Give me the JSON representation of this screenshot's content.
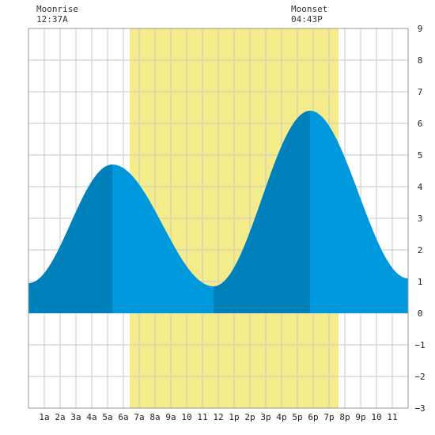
{
  "moon": {
    "moonrise_label": "Moonrise",
    "moonrise_time": "12:37A",
    "moonset_label": "Moonset",
    "moonset_time": "04:43P"
  },
  "chart_data": {
    "type": "area",
    "title": "",
    "xlabel": "",
    "ylabel": "",
    "xlim": [
      0,
      24
    ],
    "ylim": [
      -3,
      9
    ],
    "grid": true,
    "x_ticks": [
      {
        "x": 1,
        "label": "1a"
      },
      {
        "x": 2,
        "label": "2a"
      },
      {
        "x": 3,
        "label": "3a"
      },
      {
        "x": 4,
        "label": "4a"
      },
      {
        "x": 5,
        "label": "5a"
      },
      {
        "x": 6,
        "label": "6a"
      },
      {
        "x": 7,
        "label": "7a"
      },
      {
        "x": 8,
        "label": "8a"
      },
      {
        "x": 9,
        "label": "9a"
      },
      {
        "x": 10,
        "label": "10"
      },
      {
        "x": 11,
        "label": "11"
      },
      {
        "x": 12,
        "label": "12"
      },
      {
        "x": 13,
        "label": "1p"
      },
      {
        "x": 14,
        "label": "2p"
      },
      {
        "x": 15,
        "label": "3p"
      },
      {
        "x": 16,
        "label": "4p"
      },
      {
        "x": 17,
        "label": "5p"
      },
      {
        "x": 18,
        "label": "6p"
      },
      {
        "x": 19,
        "label": "7p"
      },
      {
        "x": 20,
        "label": "8p"
      },
      {
        "x": 21,
        "label": "9p"
      },
      {
        "x": 22,
        "label": "10"
      },
      {
        "x": 23,
        "label": "11"
      }
    ],
    "y_ticks": [
      -3,
      -2,
      -1,
      0,
      1,
      2,
      3,
      4,
      5,
      6,
      7,
      8,
      9
    ],
    "daylight": {
      "start": 6.4,
      "end": 19.6
    },
    "tide_extremes": [
      {
        "time": 0.0,
        "height": 0.95
      },
      {
        "time": 5.3,
        "height": 4.7
      },
      {
        "time": 11.7,
        "height": 0.85
      },
      {
        "time": 17.8,
        "height": 6.4
      },
      {
        "time": 24.0,
        "height": 1.1
      }
    ],
    "phase_boundaries": [
      5.3,
      11.7,
      17.8
    ],
    "colors": {
      "daylight": "#f4ec8a",
      "rising": "#0080bb",
      "falling": "#0099dd",
      "grid": "#c8c8c8",
      "axis": "#999999"
    }
  }
}
